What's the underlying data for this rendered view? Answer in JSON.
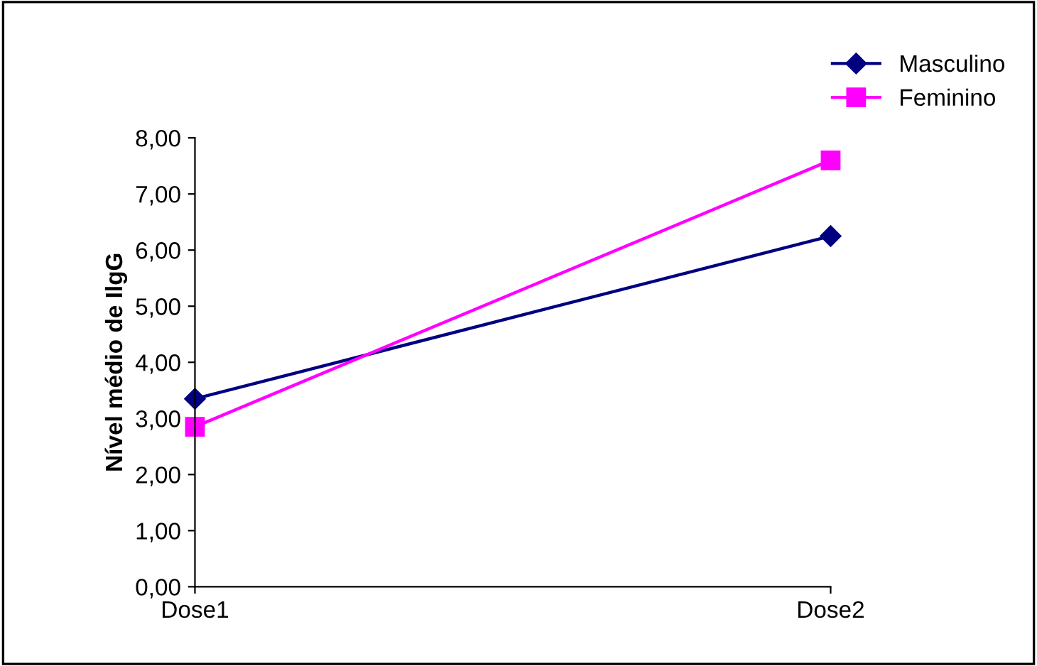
{
  "chart_data": {
    "type": "line",
    "ylabel": "Nível médio de IlgG",
    "categories": [
      "Dose1",
      "Dose2"
    ],
    "series": [
      {
        "name": "Masculino",
        "color": "#000080",
        "values": [
          3.35,
          6.25
        ],
        "marker": "diamond"
      },
      {
        "name": "Feminino",
        "color": "#ff00ff",
        "values": [
          2.85,
          7.6
        ],
        "marker": "square"
      }
    ],
    "ylim": [
      0,
      8
    ],
    "yticks": [
      {
        "value": 0,
        "label": "0,00"
      },
      {
        "value": 1,
        "label": "1,00"
      },
      {
        "value": 2,
        "label": "2,00"
      },
      {
        "value": 3,
        "label": "3,00"
      },
      {
        "value": 4,
        "label": "4,00"
      },
      {
        "value": 5,
        "label": "5,00"
      },
      {
        "value": 6,
        "label": "6,00"
      },
      {
        "value": 7,
        "label": "7,00"
      },
      {
        "value": 8,
        "label": "8,00"
      }
    ],
    "grid": false,
    "legend": "top right",
    "line_style": "solid"
  }
}
